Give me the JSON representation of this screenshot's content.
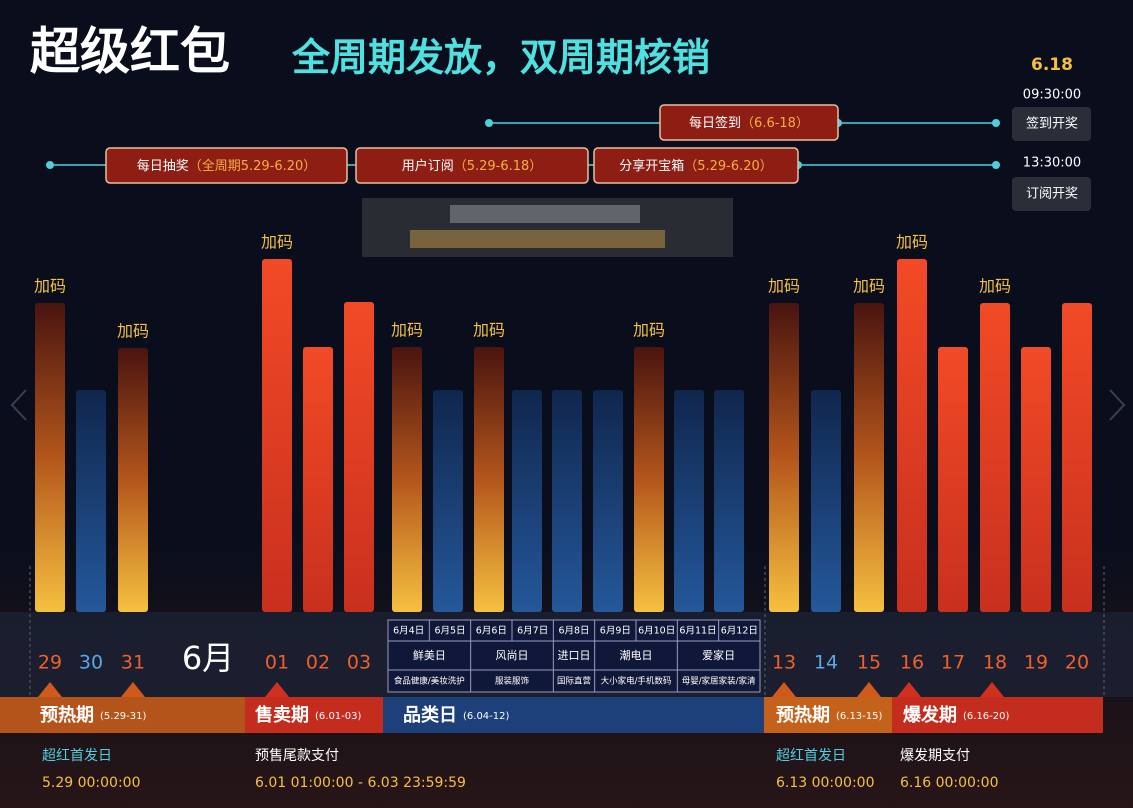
{
  "header": {
    "title": "超级红包",
    "subtitle": "全周期发放，双周期核销"
  },
  "schedule": {
    "date": "6.18",
    "draws": [
      {
        "time": "09:30:00",
        "label": "签到开奖"
      },
      {
        "time": "13:30:00",
        "label": "订阅开奖"
      }
    ]
  },
  "activities": [
    {
      "name": "每日签到",
      "period": "（6.6-18）"
    },
    {
      "name": "每日抽奖",
      "period": "（全周期5.29-6.20）"
    },
    {
      "name": "用户订阅",
      "period": "（5.29-6.18）"
    },
    {
      "name": "分享开宝箱",
      "period": "（5.29-6.20）"
    }
  ],
  "bonus_label": "加码",
  "month_label": "6月",
  "days": [
    "29",
    "30",
    "31",
    "01",
    "02",
    "03",
    "13",
    "14",
    "15",
    "16",
    "17",
    "18",
    "19",
    "20"
  ],
  "category_days": {
    "dates": [
      "6月4日",
      "6月5日",
      "6月6日",
      "6月7日",
      "6月8日",
      "6月9日",
      "6月10日",
      "6月11日",
      "6月12日"
    ],
    "groups": [
      {
        "name": "鲜美日",
        "scope": "食品健康/美妆洗护"
      },
      {
        "name": "风尚日",
        "scope": "服装服饰"
      },
      {
        "name": "进口日",
        "scope": "国际直营"
      },
      {
        "name": "潮电日",
        "scope": "大小家电/手机数码"
      },
      {
        "name": "爱家日",
        "scope": "母婴/家居家装/家清"
      }
    ]
  },
  "phases": [
    {
      "name": "预热期",
      "range": "(5.29-31)"
    },
    {
      "name": "售卖期",
      "range": "(6.01-03)"
    },
    {
      "name": "品类日",
      "range": "(6.04-12)"
    },
    {
      "name": "预热期",
      "range": "(6.13-15)"
    },
    {
      "name": "爆发期",
      "range": "(6.16-20)"
    }
  ],
  "notes": [
    {
      "title": "超红首发日",
      "time": "5.29 00:00:00"
    },
    {
      "title": "预售尾款支付",
      "time": "6.01 01:00:00 - 6.03 23:59:59"
    },
    {
      "title": "超红首发日",
      "time": "6.13 00:00:00"
    },
    {
      "title": "爆发期支付",
      "time": "6.16 00:00:00"
    }
  ]
}
